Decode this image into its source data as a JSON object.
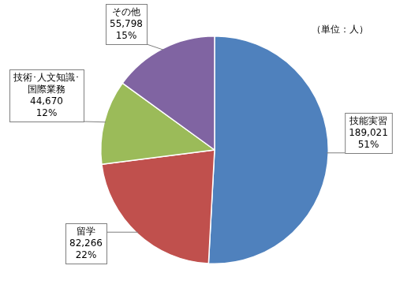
{
  "chart_data": {
    "type": "pie",
    "annotation": "（単位：人）",
    "categories": [
      "技能実習",
      "留学",
      [
        "技術･人文知識･",
        "国際業務"
      ],
      "その他"
    ],
    "values": [
      189021,
      82266,
      44670,
      55798
    ],
    "value_labels": [
      "189,021",
      "82,266",
      "44,670",
      "55,798"
    ],
    "percents": [
      51,
      22,
      12,
      15
    ],
    "percent_labels": [
      "51%",
      "22%",
      "12%",
      "15%"
    ],
    "colors": [
      "#4f81bd",
      "#c0504d",
      "#9bbb59",
      "#8064a2"
    ],
    "data_labels": true
  }
}
